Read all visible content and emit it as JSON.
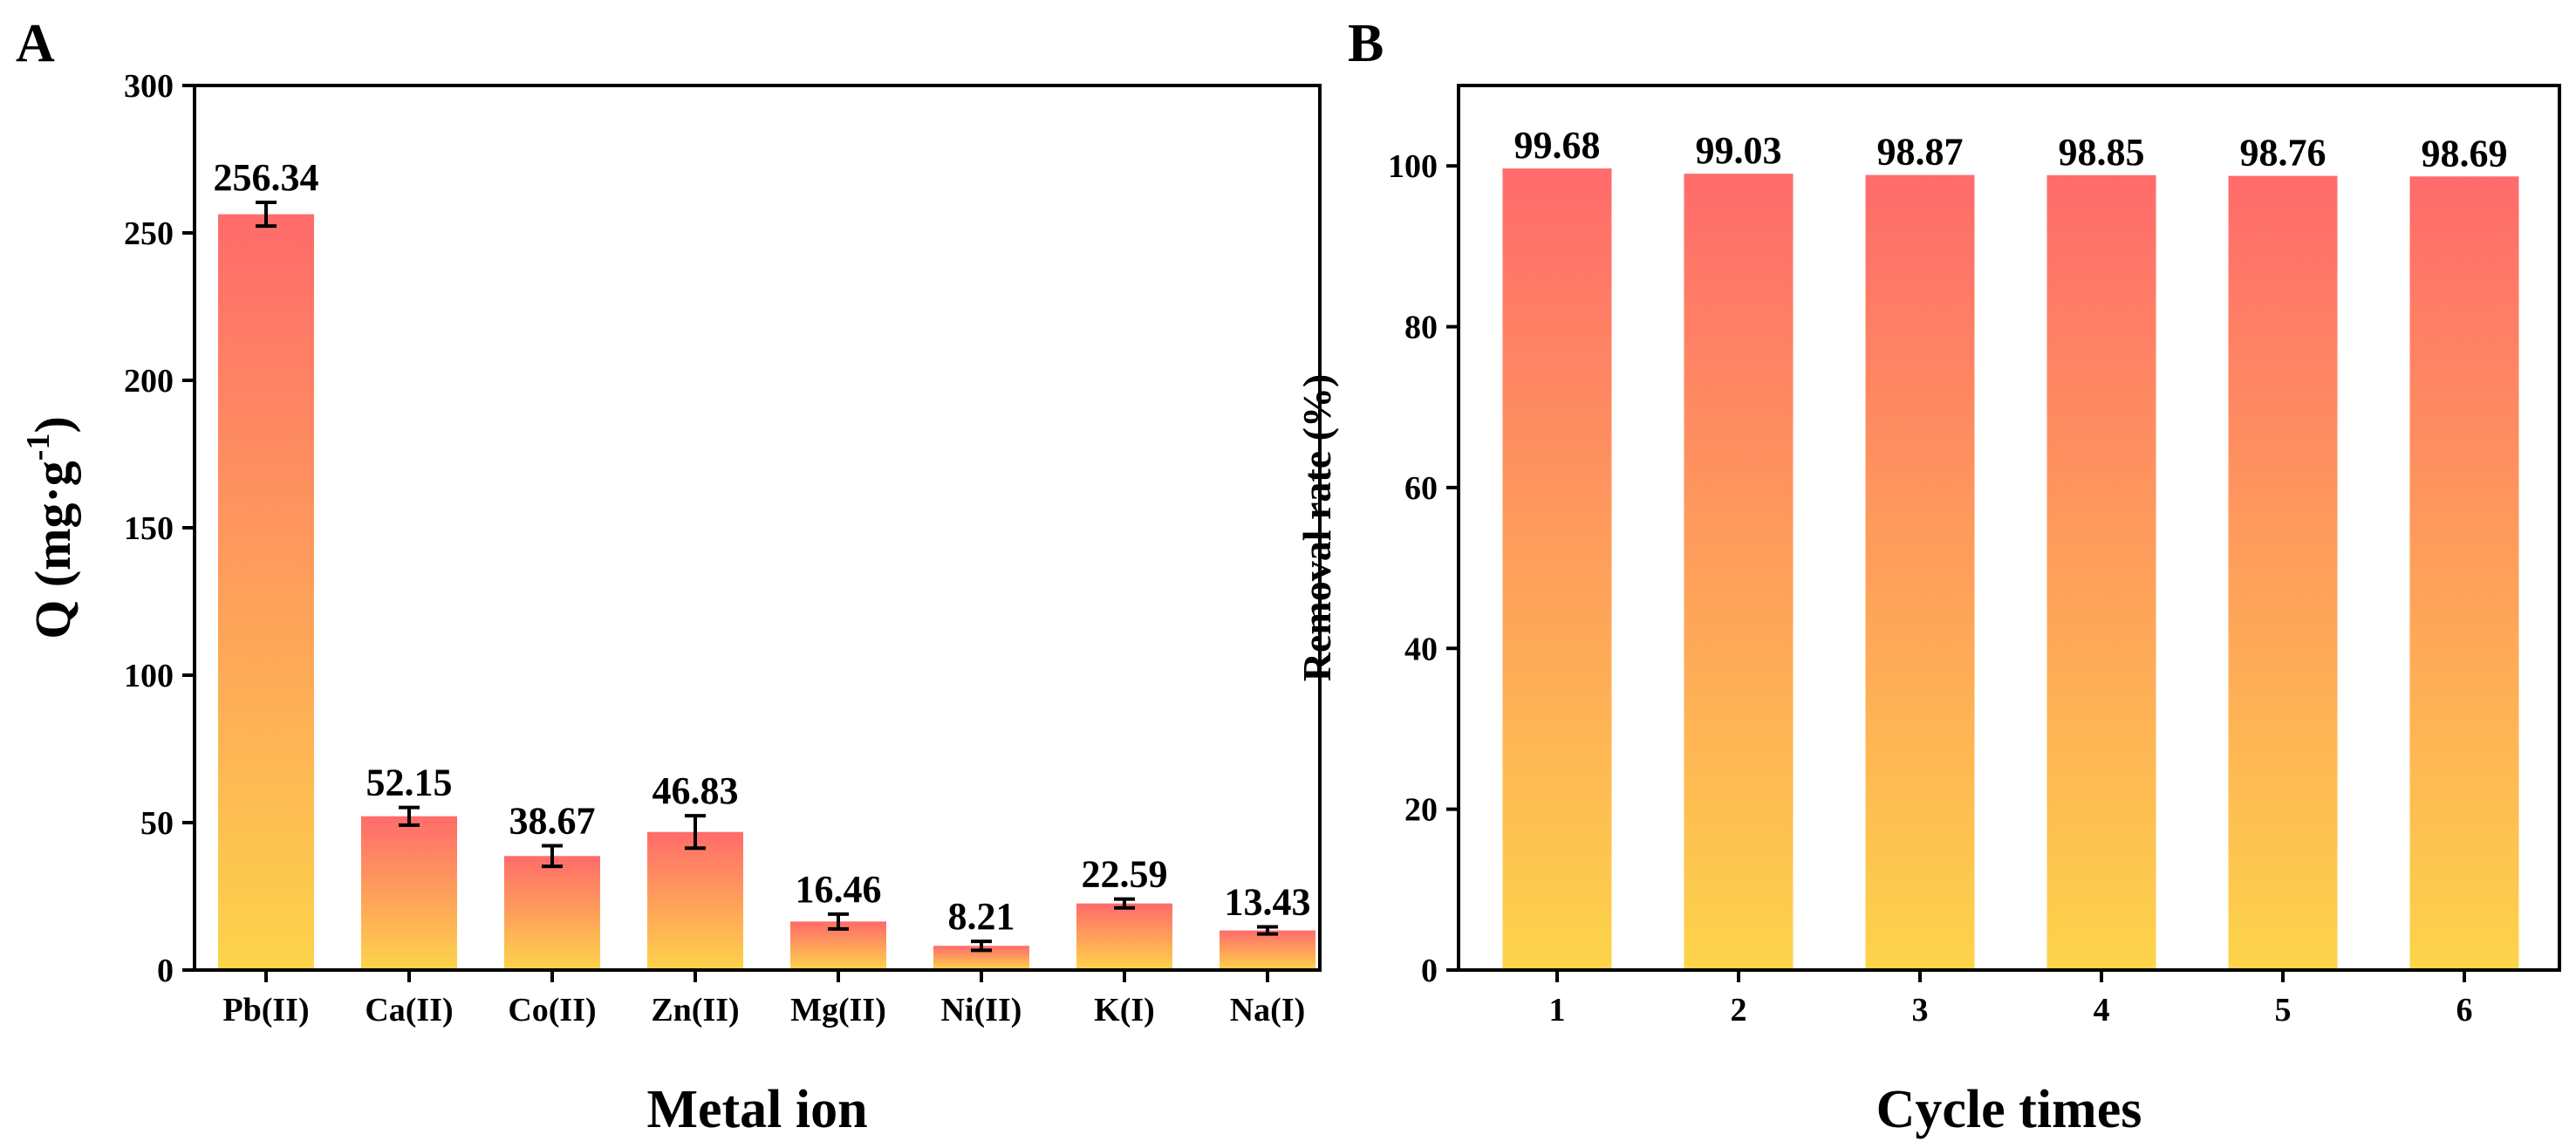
{
  "colors": {
    "bar_top": "#ff6b6b",
    "bar_bottom": "#fdd44a"
  },
  "chart_data": [
    {
      "panel_label": "A",
      "type": "bar",
      "categories": [
        "Pb(II)",
        "Ca(II)",
        "Co(II)",
        "Zn(II)",
        "Mg(II)",
        "Ni(II)",
        "K(I)",
        "Na(I)"
      ],
      "values": [
        256.34,
        52.15,
        38.67,
        46.83,
        16.46,
        8.21,
        22.59,
        13.43
      ],
      "value_labels": [
        "256.34",
        "52.15",
        "38.67",
        "46.83",
        "16.46",
        "8.21",
        "22.59",
        "13.43"
      ],
      "errors": [
        4,
        3,
        3.5,
        5.5,
        2.5,
        1.5,
        1.5,
        1.2
      ],
      "xlabel": "Metal ion",
      "ylabel": "Q (mg·g",
      "ylabel_sup": "-1",
      "ylabel_close": ")",
      "ylim": [
        0,
        300
      ],
      "yticks": [
        0,
        50,
        100,
        150,
        200,
        250,
        300
      ],
      "grid": false,
      "legend": "none"
    },
    {
      "panel_label": "B",
      "type": "bar",
      "categories": [
        "1",
        "2",
        "3",
        "4",
        "5",
        "6"
      ],
      "values": [
        99.68,
        99.03,
        98.87,
        98.85,
        98.76,
        98.69
      ],
      "value_labels": [
        "99.68",
        "99.03",
        "98.87",
        "98.85",
        "98.76",
        "98.69"
      ],
      "xlabel": "Cycle times",
      "ylabel": "Removal rate (%)",
      "ylim": [
        0,
        110
      ],
      "yticks": [
        0,
        20,
        40,
        60,
        80,
        100
      ],
      "grid": false,
      "legend": "none"
    }
  ]
}
